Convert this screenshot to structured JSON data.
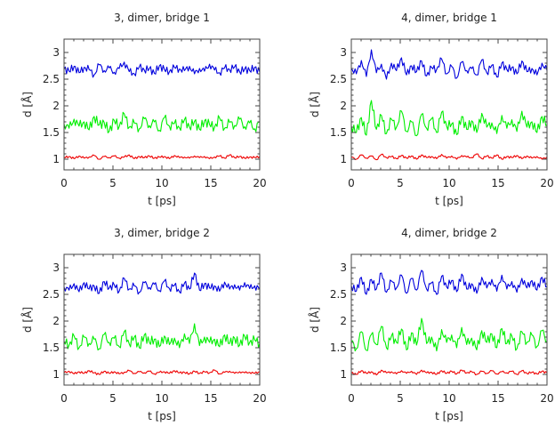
{
  "chart_data": [
    {
      "type": "line",
      "title": "3, dimer, bridge 1",
      "xlabel": "t [ps]",
      "ylabel": "d [Å]",
      "xlim": [
        0,
        20
      ],
      "ylim": [
        0.8,
        3.25
      ],
      "xticks": [
        "0",
        "5",
        "10",
        "15",
        "20"
      ],
      "yticks": [
        "1",
        "1.5",
        "2",
        "2.5",
        "3"
      ],
      "series": [
        {
          "color": "#0000dd",
          "values": [
            2.69,
            2.65,
            2.74,
            2.62,
            2.72,
            2.68,
            2.58,
            2.77,
            2.66,
            2.71,
            2.63,
            2.7,
            2.82,
            2.64,
            2.6,
            2.73,
            2.67,
            2.7,
            2.61,
            2.75,
            2.68,
            2.64,
            2.72,
            2.69,
            2.66,
            2.74,
            2.6,
            2.7,
            2.65,
            2.78,
            2.67,
            2.62,
            2.71,
            2.68,
            2.73,
            2.64,
            2.69,
            2.66,
            2.72,
            2.63
          ]
        },
        {
          "color": "#00ee00",
          "values": [
            1.66,
            1.58,
            1.75,
            1.62,
            1.7,
            1.55,
            1.8,
            1.64,
            1.69,
            1.52,
            1.73,
            1.61,
            1.85,
            1.6,
            1.68,
            1.57,
            1.76,
            1.63,
            1.7,
            1.54,
            1.78,
            1.62,
            1.67,
            1.59,
            1.74,
            1.6,
            1.71,
            1.56,
            1.72,
            1.65,
            1.6,
            1.77,
            1.58,
            1.69,
            1.63,
            1.75,
            1.61,
            1.68,
            1.57,
            1.7
          ]
        },
        {
          "color": "#ee0000",
          "values": [
            1.03,
            1.05,
            1.01,
            1.06,
            1.02,
            1.04,
            1.07,
            1.0,
            1.05,
            1.03,
            1.06,
            1.02,
            1.04,
            1.08,
            1.01,
            1.05,
            1.03,
            1.06,
            1.02,
            1.04,
            1.05,
            1.01,
            1.07,
            1.03,
            1.04,
            1.02,
            1.06,
            1.03,
            1.05,
            1.01,
            1.04,
            1.06,
            1.02,
            1.08,
            1.03,
            1.05,
            1.02,
            1.04,
            1.03,
            1.05
          ]
        }
      ]
    },
    {
      "type": "line",
      "title": "4, dimer, bridge 1",
      "xlabel": "t [ps]",
      "ylabel": "d [Å]",
      "xlim": [
        0,
        20
      ],
      "ylim": [
        0.8,
        3.25
      ],
      "xticks": [
        "0",
        "5",
        "10",
        "15",
        "20"
      ],
      "yticks": [
        "1",
        "1.5",
        "2",
        "2.5",
        "3"
      ],
      "series": [
        {
          "color": "#0000dd",
          "values": [
            2.7,
            2.6,
            2.85,
            2.55,
            3.05,
            2.62,
            2.78,
            2.5,
            2.8,
            2.66,
            2.9,
            2.58,
            2.75,
            2.64,
            2.84,
            2.56,
            2.72,
            2.68,
            2.88,
            2.6,
            2.74,
            2.52,
            2.82,
            2.66,
            2.7,
            2.58,
            2.86,
            2.62,
            2.76,
            2.54,
            2.8,
            2.68,
            2.72,
            2.6,
            2.84,
            2.64,
            2.7,
            2.58,
            2.8,
            2.66
          ]
        },
        {
          "color": "#00ee00",
          "values": [
            1.62,
            1.5,
            1.78,
            1.45,
            2.1,
            1.56,
            1.82,
            1.48,
            1.75,
            1.6,
            1.9,
            1.52,
            1.7,
            1.44,
            1.84,
            1.58,
            1.76,
            1.5,
            1.88,
            1.62,
            1.66,
            1.46,
            1.8,
            1.56,
            1.72,
            1.5,
            1.86,
            1.6,
            1.68,
            1.48,
            1.82,
            1.58,
            1.74,
            1.52,
            1.9,
            1.6,
            1.7,
            1.5,
            1.8,
            1.64
          ]
        },
        {
          "color": "#ee0000",
          "values": [
            1.04,
            1.0,
            1.08,
            1.02,
            1.06,
            0.99,
            1.09,
            1.03,
            1.05,
            1.01,
            1.07,
            1.02,
            1.06,
            1.0,
            1.08,
            1.03,
            1.05,
            1.01,
            1.09,
            1.02,
            1.06,
            1.0,
            1.07,
            1.04,
            1.03,
            1.1,
            1.01,
            1.06,
            1.02,
            1.08,
            1.0,
            1.05,
            1.03,
            1.07,
            1.01,
            1.06,
            1.02,
            1.05,
            1.0,
            1.04
          ]
        }
      ]
    },
    {
      "type": "line",
      "title": "3, dimer, bridge 2",
      "xlabel": "t [ps]",
      "ylabel": "d [Å]",
      "xlim": [
        0,
        20
      ],
      "ylim": [
        0.8,
        3.25
      ],
      "xticks": [
        "0",
        "5",
        "10",
        "15",
        "20"
      ],
      "yticks": [
        "1",
        "1.5",
        "2",
        "2.5",
        "3"
      ],
      "series": [
        {
          "color": "#0000dd",
          "values": [
            2.64,
            2.58,
            2.7,
            2.55,
            2.72,
            2.6,
            2.66,
            2.52,
            2.74,
            2.62,
            2.68,
            2.56,
            2.8,
            2.6,
            2.66,
            2.54,
            2.72,
            2.63,
            2.69,
            2.57,
            2.75,
            2.61,
            2.67,
            2.55,
            2.71,
            2.6,
            2.9,
            2.58,
            2.7,
            2.62,
            2.66,
            2.56,
            2.73,
            2.6,
            2.68,
            2.58,
            2.72,
            2.61,
            2.66,
            2.6
          ]
        },
        {
          "color": "#00ee00",
          "values": [
            1.62,
            1.55,
            1.72,
            1.5,
            1.7,
            1.58,
            1.66,
            1.48,
            1.75,
            1.6,
            1.68,
            1.52,
            1.8,
            1.57,
            1.7,
            1.5,
            1.74,
            1.6,
            1.66,
            1.52,
            1.72,
            1.56,
            1.68,
            1.5,
            1.76,
            1.58,
            1.95,
            1.54,
            1.7,
            1.6,
            1.66,
            1.52,
            1.74,
            1.58,
            1.68,
            1.55,
            1.72,
            1.6,
            1.65,
            1.58
          ]
        },
        {
          "color": "#ee0000",
          "values": [
            1.03,
            1.06,
            1.01,
            1.05,
            1.02,
            1.07,
            1.03,
            1.0,
            1.06,
            1.02,
            1.05,
            1.01,
            1.04,
            1.07,
            1.02,
            1.05,
            1.03,
            1.06,
            1.01,
            1.04,
            1.05,
            1.02,
            1.07,
            1.03,
            1.04,
            1.01,
            1.06,
            1.02,
            1.05,
            1.03,
            1.08,
            1.01,
            1.04,
            1.06,
            1.02,
            1.05,
            1.03,
            1.04,
            1.02,
            1.05
          ]
        }
      ]
    },
    {
      "type": "line",
      "title": "4, dimer, bridge 2",
      "xlabel": "t [ps]",
      "ylabel": "d [Å]",
      "xlim": [
        0,
        20
      ],
      "ylim": [
        0.8,
        3.25
      ],
      "xticks": [
        "0",
        "5",
        "10",
        "15",
        "20"
      ],
      "yticks": [
        "1",
        "1.5",
        "2",
        "2.5",
        "3"
      ],
      "series": [
        {
          "color": "#0000dd",
          "values": [
            2.66,
            2.56,
            2.82,
            2.5,
            2.78,
            2.6,
            2.9,
            2.54,
            2.75,
            2.62,
            2.86,
            2.52,
            2.8,
            2.58,
            2.95,
            2.6,
            2.72,
            2.5,
            2.84,
            2.64,
            2.76,
            2.55,
            2.88,
            2.6,
            2.7,
            2.52,
            2.82,
            2.62,
            2.78,
            2.56,
            2.86,
            2.6,
            2.74,
            2.54,
            2.8,
            2.62,
            2.76,
            2.58,
            2.82,
            2.64
          ]
        },
        {
          "color": "#00ee00",
          "values": [
            1.62,
            1.48,
            1.8,
            1.45,
            1.75,
            1.56,
            1.9,
            1.5,
            1.72,
            1.6,
            1.85,
            1.46,
            1.78,
            1.55,
            2.05,
            1.58,
            1.7,
            1.44,
            1.84,
            1.6,
            1.74,
            1.5,
            1.88,
            1.56,
            1.68,
            1.46,
            1.82,
            1.6,
            1.76,
            1.5,
            1.86,
            1.58,
            1.72,
            1.48,
            1.8,
            1.6,
            1.74,
            1.52,
            1.82,
            1.62
          ]
        },
        {
          "color": "#ee0000",
          "values": [
            1.03,
            1.0,
            1.07,
            1.02,
            1.05,
            0.99,
            1.08,
            1.03,
            1.05,
            1.01,
            1.07,
            1.02,
            1.06,
            1.0,
            1.08,
            1.03,
            1.04,
            1.0,
            1.07,
            1.02,
            1.06,
            1.01,
            1.08,
            1.03,
            1.05,
            1.0,
            1.06,
            1.02,
            1.07,
            1.01,
            1.05,
            1.03,
            1.06,
            1.0,
            1.07,
            1.02,
            1.04,
            1.01,
            1.06,
            1.03
          ]
        }
      ]
    }
  ]
}
